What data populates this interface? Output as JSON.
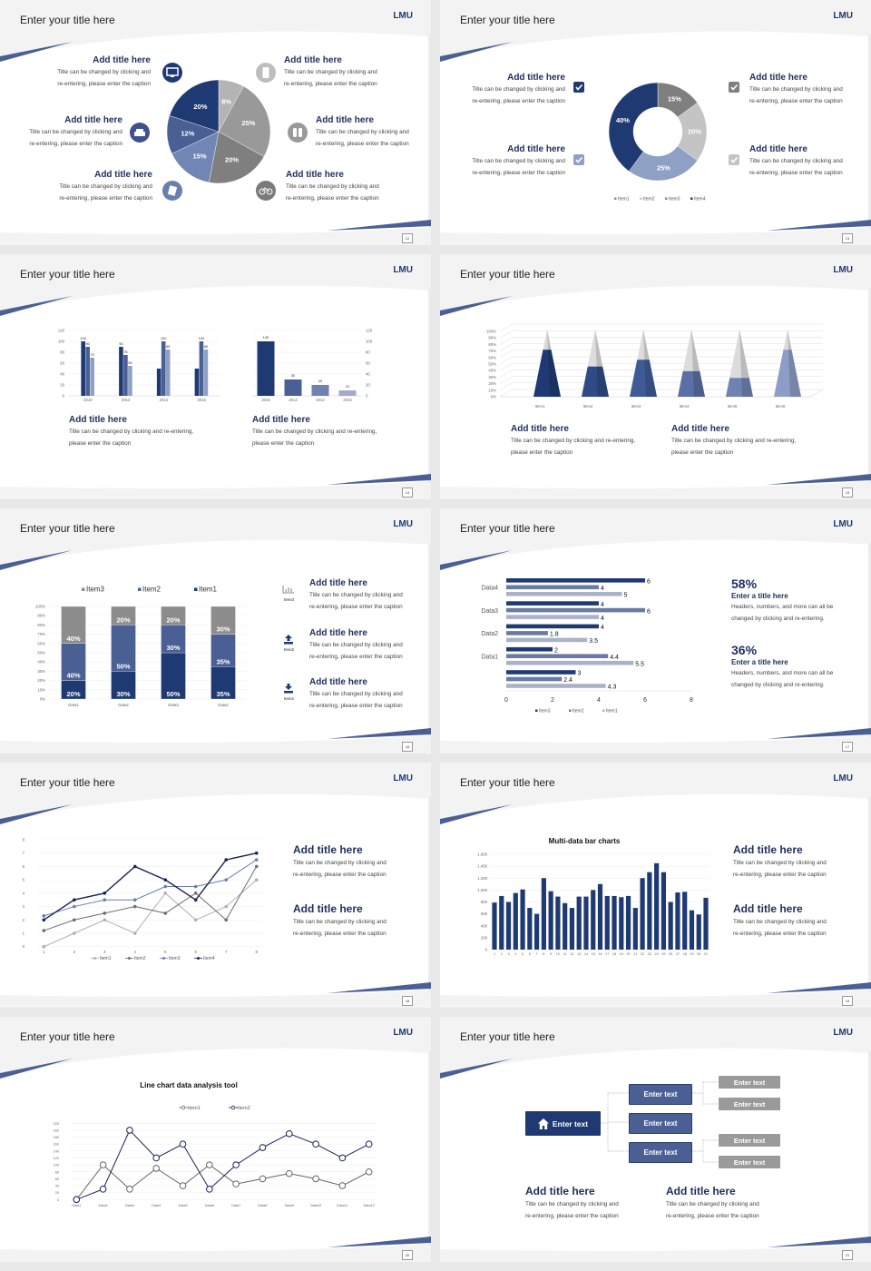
{
  "slides": [
    {
      "title": "Enter your title here",
      "logo": "LMU",
      "page": "12",
      "items": [
        {
          "title": "Add title here",
          "caption": "Title can be changed by clicking and\nre-entering, please enter the caption",
          "icon": "monitor-icon"
        },
        {
          "title": "Add title here",
          "caption": "Title can be changed by clicking and\nre-entering, please enter the caption",
          "icon": "car-icon"
        },
        {
          "title": "Add title here",
          "caption": "Title can be changed by clicking and\nre-entering, please enter the caption",
          "icon": "book-icon"
        },
        {
          "title": "Add title here",
          "caption": "Title can be changed by clicking and\nre-entering, please enter the caption",
          "icon": "phone-icon"
        },
        {
          "title": "Add title here",
          "caption": "Title can be changed by clicking and\nre-entering, please enter the caption",
          "icon": "binoculars-icon"
        },
        {
          "title": "Add title here",
          "caption": "Title can be changed by clicking and\nre-entering, please enter the caption",
          "icon": "bicycle-icon"
        }
      ]
    },
    {
      "title": "Enter your title here",
      "logo": "LMU",
      "page": "13",
      "items": [
        {
          "title": "Add title here",
          "caption": "Title can be changed by clicking and\nre-entering, please enter the caption"
        },
        {
          "title": "Add title here",
          "caption": "Title can be changed by clicking and\nre-entering, please enter the caption"
        },
        {
          "title": "Add title here",
          "caption": "Title can be changed by clicking and\nre-entering, please enter the caption"
        },
        {
          "title": "Add title here",
          "caption": "Title can be changed by clicking and\nre-entering, please enter the caption"
        }
      ],
      "checkbox_colors": [
        "#1f3a73",
        "#8ea0c4",
        "#7f7f7f",
        "#c4c4c4"
      ]
    },
    {
      "title": "Enter your title here",
      "logo": "LMU",
      "page": "14",
      "items": [
        {
          "title": "Add title here",
          "caption": "Title can be changed by clicking and re-entering,\nplease enter the caption"
        },
        {
          "title": "Add title here",
          "caption": "Title can be changed by clicking and re-entering,\nplease enter the caption"
        }
      ]
    },
    {
      "title": "Enter your title here",
      "logo": "LMU",
      "page": "15",
      "items": [
        {
          "title": "Add title here",
          "caption": "Title can be changed by clicking and re-entering,\nplease enter the caption"
        },
        {
          "title": "Add title here",
          "caption": "Title can be changed by clicking and re-entering,\nplease enter the caption"
        }
      ]
    },
    {
      "title": "Enter your title here",
      "logo": "LMU",
      "page": "16",
      "items": [
        {
          "icon": "bar-chart-icon",
          "icon_label": "Item3",
          "title": "Add title here",
          "caption": "Title can be changed by clicking and\nre-entering, please enter the caption"
        },
        {
          "icon": "upload-icon",
          "icon_label": "Item2",
          "title": "Add title here",
          "caption": "Title can be changed by clicking and\nre-entering, please enter the caption"
        },
        {
          "icon": "download-icon",
          "icon_label": "Item1",
          "title": "Add title here",
          "caption": "Title can be changed by clicking and\nre-entering, please enter the caption"
        }
      ]
    },
    {
      "title": "Enter your title here",
      "logo": "LMU",
      "page": "17",
      "stats": [
        {
          "value": "58%",
          "title": "Enter a title here",
          "caption": "Headers, numbers, and more can all be\nchanged by clicking and re-entering."
        },
        {
          "value": "36%",
          "title": "Enter a title here",
          "caption": "Headers, numbers, and more can all be\nchanged by clicking and re-entering."
        }
      ]
    },
    {
      "title": "Enter your title here",
      "logo": "LMU",
      "page": "18",
      "items": [
        {
          "title": "Add title here",
          "caption": "Title can be changed by clicking and\nre-entering, please enter the caption"
        },
        {
          "title": "Add title here",
          "caption": "Title can be changed by clicking and\nre-entering, please enter the caption"
        }
      ]
    },
    {
      "title": "Enter your title here",
      "logo": "LMU",
      "page": "19",
      "items": [
        {
          "title": "Add title here",
          "caption": "Title can be changed by clicking and\nre-entering, please enter the caption"
        },
        {
          "title": "Add title here",
          "caption": "Title can be changed by clicking and\nre-entering, please enter the caption"
        }
      ]
    },
    {
      "title": "Enter your title here",
      "logo": "LMU",
      "page": "20"
    },
    {
      "title": "Enter your title here",
      "logo": "LMU",
      "page": "21",
      "org": {
        "root": "Enter text",
        "level2": [
          "Enter text",
          "Enter text",
          "Enter text"
        ],
        "level3": [
          "Enter text",
          "Enter text",
          "Enter text",
          "Enter text"
        ]
      },
      "items": [
        {
          "title": "Add title here",
          "caption": "Title can be changed by clicking and\nre-entering, please enter the caption"
        },
        {
          "title": "Add title here",
          "caption": "Title can be changed by clicking and\nre-entering, please enter the caption"
        }
      ]
    }
  ],
  "chart_data": [
    {
      "type": "pie",
      "values": [
        8,
        25,
        20,
        15,
        12,
        20
      ],
      "labels": [
        "8%",
        "25%",
        "20%",
        "15%",
        "12%",
        "20%"
      ],
      "colors": [
        "#b4b4b4",
        "#999999",
        "#7f7f7f",
        "#7286b6",
        "#4a5f94",
        "#1f3a73"
      ]
    },
    {
      "type": "pie",
      "donut": true,
      "values": [
        15,
        20,
        25,
        40
      ],
      "labels": [
        "15%",
        "20%",
        "25%",
        "40%"
      ],
      "colors": [
        "#7f7f7f",
        "#c4c4c4",
        "#8ea0c4",
        "#1f3a73"
      ],
      "legend": [
        "Item1",
        "Item2",
        "Item3",
        "Item4"
      ],
      "legend_colors": [
        "#8c8c8c",
        "#c4c4c4",
        "#8c8c8c",
        "#1f3a73"
      ],
      "legend_position": "bottom"
    },
    {
      "type": "bar",
      "categories": [
        "2010",
        "2012",
        "2014",
        "2016"
      ],
      "series": [
        {
          "values": [
            100,
            90,
            50,
            50
          ]
        },
        {
          "values": [
            90,
            75,
            100,
            100
          ]
        },
        {
          "values": [
            70,
            55,
            85,
            85
          ]
        }
      ],
      "data_labels": [
        [
          "100",
          "90",
          "",
          ""
        ],
        [
          "90",
          "75",
          "100",
          "100"
        ],
        [
          "70",
          "55",
          "85",
          "85"
        ]
      ],
      "ylim": [
        0,
        120
      ],
      "yticks": [
        "0",
        "20",
        "40",
        "60",
        "80",
        "100",
        "120"
      ],
      "colors": [
        "#1f3a73",
        "#4a5f94",
        "#8ea0c4"
      ]
    },
    {
      "type": "bar",
      "categories": [
        "2016",
        "2014",
        "2012",
        "2010"
      ],
      "values": [
        100,
        30,
        20,
        10
      ],
      "data_labels": [
        "100",
        "30",
        "20",
        "10"
      ],
      "ylim": [
        0,
        120
      ],
      "yticks": [
        "0",
        "20",
        "40",
        "60",
        "80",
        "100",
        "120"
      ],
      "y_axis": "right",
      "colors": [
        "#1f3a73",
        "#4a5f94",
        "#7082b0",
        "#a0acc8"
      ]
    },
    {
      "type": "bar",
      "style": "3d-pyramid",
      "categories": [
        "Item1",
        "Item2",
        "Item3",
        "Item4",
        "Item5",
        "Item6"
      ],
      "values": [
        70,
        45,
        55,
        38,
        28,
        70
      ],
      "ylim": [
        0,
        100
      ],
      "yticks": [
        "0%",
        "10%",
        "20%",
        "30%",
        "40%",
        "50%",
        "60%",
        "70%",
        "80%",
        "90%",
        "100%"
      ],
      "colors": [
        "#1f3a73",
        "#2f4b86",
        "#3f5b96",
        "#5a6fa3",
        "#6f83b3",
        "#8c9dc6"
      ]
    },
    {
      "type": "bar",
      "stacked": true,
      "categories": [
        "Data1",
        "Data2",
        "Data3",
        "Data4"
      ],
      "series": [
        {
          "name": "Item1",
          "values": [
            20,
            30,
            50,
            35
          ],
          "labels": [
            "20%",
            "30%",
            "50%",
            "35%"
          ]
        },
        {
          "name": "Item2",
          "values": [
            40,
            50,
            30,
            35
          ],
          "labels": [
            "40%",
            "50%",
            "30%",
            "35%"
          ]
        },
        {
          "name": "Item3",
          "values": [
            40,
            20,
            20,
            30
          ],
          "labels": [
            "40%",
            "20%",
            "20%",
            "30%"
          ]
        }
      ],
      "yticks": [
        "0%",
        "10%",
        "20%",
        "30%",
        "40%",
        "50%",
        "60%",
        "70%",
        "80%",
        "90%",
        "100%"
      ],
      "legend": [
        "Item3",
        "Item2",
        "Item1"
      ],
      "legend_position": "top",
      "colors": [
        "#1f3a73",
        "#4a5f94",
        "#8c8c8c"
      ]
    },
    {
      "type": "bar",
      "horizontal": true,
      "categories": [
        "Data4",
        "Data3",
        "Data2",
        "Data1",
        ""
      ],
      "series": [
        {
          "name": "Item3",
          "values": [
            6,
            4,
            4,
            2,
            3
          ],
          "labels": [
            "6",
            "4",
            "4",
            "2",
            "3"
          ]
        },
        {
          "name": "Item2",
          "values": [
            4,
            6,
            1.8,
            4.4,
            2.4
          ],
          "labels": [
            "4",
            "6",
            "1.8",
            "4.4",
            "2.4"
          ]
        },
        {
          "name": "Item1",
          "values": [
            5,
            4,
            3.5,
            5.5,
            4.3
          ],
          "labels": [
            "5",
            "4",
            "3.5",
            "5.5",
            "4.3"
          ]
        }
      ],
      "xlim": [
        0,
        8
      ],
      "xticks": [
        "0",
        "2",
        "4",
        "6",
        "8"
      ],
      "legend": [
        "Item3",
        "Item2",
        "Item1"
      ],
      "legend_position": "bottom",
      "colors": [
        "#1f3a73",
        "#6a7aa3",
        "#a9b2c8"
      ]
    },
    {
      "type": "line",
      "x": [
        1,
        2,
        3,
        4,
        5,
        6,
        7,
        8
      ],
      "xticks": [
        "1",
        "2",
        "3",
        "4",
        "5",
        "6",
        "7",
        "8"
      ],
      "series": [
        {
          "name": "Item1",
          "values": [
            0,
            1,
            2,
            1,
            4,
            2,
            3,
            5
          ]
        },
        {
          "name": "Item2",
          "values": [
            1.2,
            2,
            2.5,
            3,
            2.5,
            4,
            2,
            6
          ]
        },
        {
          "name": "Item3",
          "values": [
            2.3,
            3,
            3.5,
            3.5,
            4.5,
            4.5,
            5,
            6.5
          ]
        },
        {
          "name": "Item4",
          "values": [
            2,
            3.5,
            4,
            6,
            5,
            3.5,
            6.5,
            7
          ]
        }
      ],
      "ylim": [
        0,
        8
      ],
      "yticks": [
        "0",
        "1",
        "2",
        "3",
        "4",
        "5",
        "6",
        "7",
        "8"
      ],
      "legend_position": "bottom",
      "colors": [
        "#b0b0b0",
        "#6e6e6e",
        "#6a7fb0",
        "#1a2456"
      ]
    },
    {
      "type": "bar",
      "title": "Multi-data bar charts",
      "categories": [
        "1",
        "2",
        "3",
        "4",
        "5",
        "6",
        "7",
        "8",
        "9",
        "10",
        "11",
        "12",
        "13",
        "14",
        "15",
        "16",
        "17",
        "18",
        "19",
        "20",
        "21",
        "22",
        "23",
        "24",
        "25",
        "26",
        "27",
        "28",
        "29",
        "30",
        "31"
      ],
      "values": [
        790,
        900,
        800,
        950,
        1010,
        700,
        600,
        1200,
        980,
        890,
        780,
        700,
        890,
        890,
        1000,
        1100,
        900,
        900,
        880,
        900,
        700,
        1200,
        1300,
        1450,
        1300,
        800,
        960,
        970,
        660,
        590,
        870
      ],
      "ylim": [
        0,
        1600
      ],
      "yticks": [
        "0",
        "200",
        "400",
        "600",
        "800",
        "1,000",
        "1,200",
        "1,400",
        "1,600"
      ],
      "colors": [
        "#1f3a73"
      ]
    },
    {
      "type": "line",
      "title": "Line chart data analysis tool",
      "categories": [
        "Data1",
        "Data2",
        "Data3",
        "Data4",
        "Data5",
        "Data6",
        "Data7",
        "Data8",
        "Data9",
        "Data10",
        "Data11",
        "Data12"
      ],
      "series": [
        {
          "name": "Item1",
          "values": [
            0,
            100,
            30,
            90,
            40,
            100,
            45,
            60,
            75,
            60,
            40,
            80
          ]
        },
        {
          "name": "Item2",
          "values": [
            0,
            30,
            200,
            120,
            160,
            30,
            100,
            150,
            190,
            160,
            120,
            160
          ]
        }
      ],
      "ylim": [
        0,
        220
      ],
      "yticks": [
        "0",
        "20",
        "40",
        "60",
        "80",
        "100",
        "120",
        "140",
        "160",
        "180",
        "200",
        "220"
      ],
      "legend_position": "top",
      "colors": [
        "#666666",
        "#1a2456"
      ]
    }
  ]
}
